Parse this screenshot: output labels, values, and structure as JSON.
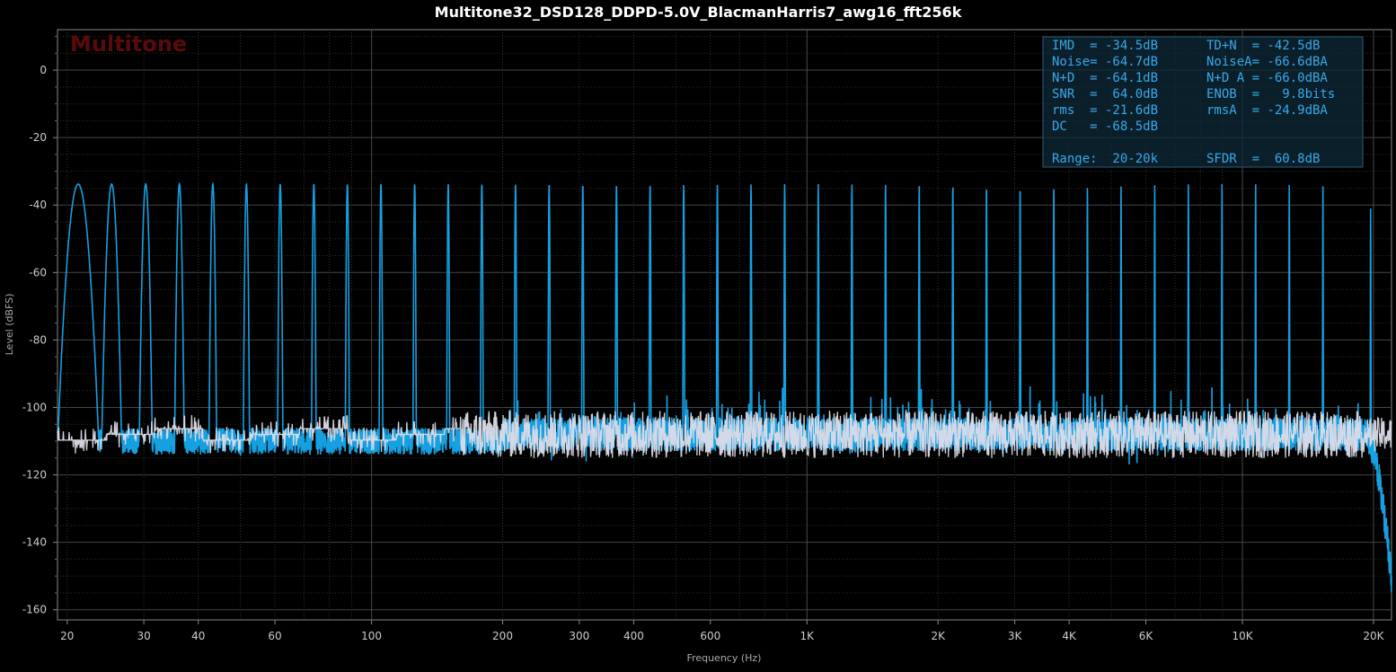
{
  "title": "Multitone32_DSD128_DDPD-5.0V_BlacmanHarris7_awg16_fft256k",
  "watermark": "Multitone",
  "colors": {
    "background": "#000000",
    "signal": "#16a0e0",
    "noise_floor": "#dcdce8",
    "grid": "#3a3a3a",
    "stats_text": "#39a9ea",
    "watermark": "#5a0a0a"
  },
  "stats": [
    [
      "IMD  = -34.5dB",
      "TD+N  = -42.5dB"
    ],
    [
      "Noise= -64.7dB",
      "NoiseA= -66.6dBA"
    ],
    [
      "N+D  = -64.1dB",
      "N+D A = -66.0dBA"
    ],
    [
      "SNR  =  64.0dB",
      "ENOB  =   9.8bits"
    ],
    [
      "rms  = -21.6dB",
      "rmsA  = -24.9dBA"
    ],
    [
      "DC   = -68.5dB",
      ""
    ],
    [
      "",
      ""
    ],
    [
      "Range:  20-20k",
      "SFDR  =  60.8dB"
    ]
  ],
  "chart_data": {
    "type": "line",
    "title": "Multitone32_DSD128_DDPD-5.0V_BlacmanHarris7_awg16_fft256k",
    "xlabel": "Frequency (Hz)",
    "ylabel": "Level (dBFS)",
    "x_scale": "log",
    "xlim": [
      19,
      22000
    ],
    "ylim": [
      -163,
      12
    ],
    "grid": true,
    "x_ticks": [
      {
        "v": 20,
        "t": "20"
      },
      {
        "v": 30,
        "t": "30"
      },
      {
        "v": 40,
        "t": "40"
      },
      {
        "v": 60,
        "t": "60"
      },
      {
        "v": 100,
        "t": "100"
      },
      {
        "v": 200,
        "t": "200"
      },
      {
        "v": 300,
        "t": "300"
      },
      {
        "v": 400,
        "t": "400"
      },
      {
        "v": 600,
        "t": "600"
      },
      {
        "v": 1000,
        "t": "1K"
      },
      {
        "v": 2000,
        "t": "2K"
      },
      {
        "v": 3000,
        "t": "3K"
      },
      {
        "v": 4000,
        "t": "4K"
      },
      {
        "v": 6000,
        "t": "6K"
      },
      {
        "v": 10000,
        "t": "10K"
      },
      {
        "v": 20000,
        "t": "20K"
      }
    ],
    "y_ticks": [
      0,
      -20,
      -40,
      -60,
      -80,
      -100,
      -120,
      -140,
      -160
    ],
    "series": [
      {
        "role": "tones",
        "tone_level_db": -33.8,
        "last_tone_level_db": -40,
        "tone_freqs_hz": [
          21.2,
          25.3,
          30.3,
          36.2,
          43.2,
          51.6,
          61.7,
          73.7,
          88.0,
          105.1,
          125.6,
          150.0,
          179.2,
          214.1,
          255.8,
          305.6,
          365.1,
          436.2,
          521.1,
          622.6,
          743.8,
          888.6,
          1061.6,
          1268.3,
          1515.3,
          1810.3,
          2162.8,
          2583.9,
          3087.0,
          3688.0,
          4406.2,
          5264.1,
          6289.0,
          7513.5,
          8976.5,
          10724.4,
          12812.6,
          15307.4,
          19700
        ],
        "noise_floor_db": -108,
        "rolloff": {
          "start_hz": 19000,
          "end_hz": 22000,
          "end_db": -152
        }
      },
      {
        "role": "noise_floor",
        "level_db": -108
      }
    ]
  }
}
